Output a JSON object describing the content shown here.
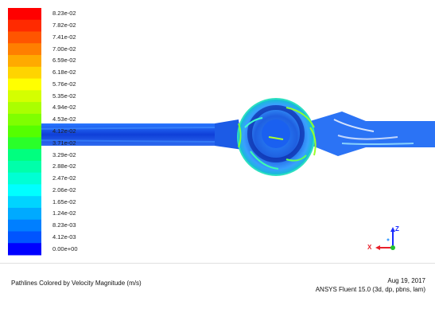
{
  "legend": {
    "labels": [
      "8.23e-02",
      "7.82e-02",
      "7.41e-02",
      "7.00e-02",
      "6.59e-02",
      "6.18e-02",
      "5.76e-02",
      "5.35e-02",
      "4.94e-02",
      "4.53e-02",
      "4.12e-02",
      "3.71e-02",
      "3.29e-02",
      "2.88e-02",
      "2.47e-02",
      "2.06e-02",
      "1.65e-02",
      "1.24e-02",
      "8.23e-03",
      "4.12e-03",
      "0.00e+00"
    ],
    "colors": [
      "#ff0000",
      "#ff2a00",
      "#ff5500",
      "#ff7f00",
      "#ffaa00",
      "#ffd400",
      "#ffff00",
      "#d4ff00",
      "#aaff00",
      "#7fff00",
      "#55ff00",
      "#2aff2a",
      "#00ff7f",
      "#00ffaa",
      "#00ffd4",
      "#00ffff",
      "#00d4ff",
      "#00aaff",
      "#007fff",
      "#0055ff",
      "#0000ff"
    ]
  },
  "axes": {
    "x_label": "X",
    "y_label": "Z"
  },
  "footer": {
    "title": "Pathlines Colored by Velocity Magnitude (m/s)",
    "date": "Aug 19, 2017",
    "solver": "ANSYS Fluent 15.0 (3d, dp, pbns, lam)"
  }
}
